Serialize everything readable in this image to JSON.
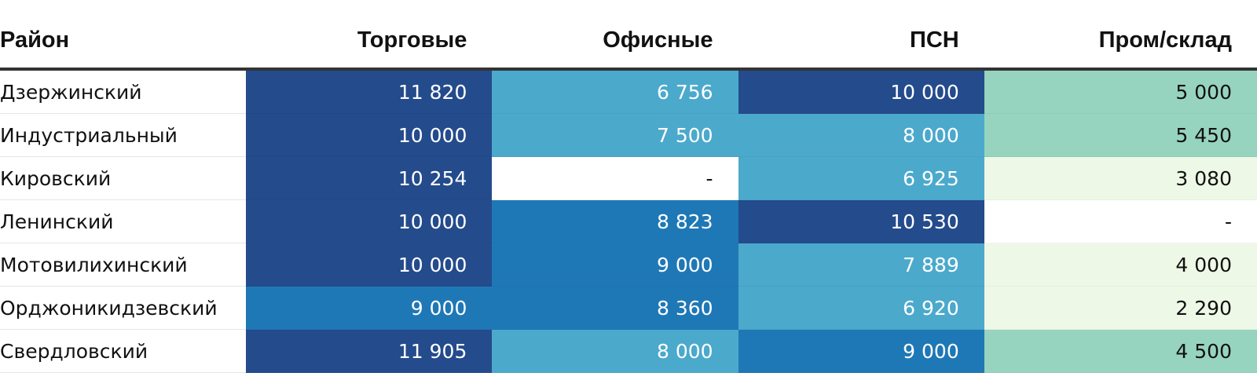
{
  "chart_data": {
    "type": "table",
    "columns": [
      "Район",
      "Торговые",
      "Офисные",
      "ПСН",
      "Пром/склад"
    ],
    "rows": [
      {
        "name": "Дзержинский",
        "values": [
          "11 820",
          "6 756",
          "10 000",
          "5 000"
        ],
        "levels": [
          4,
          2,
          4,
          2
        ]
      },
      {
        "name": "Индустриальный",
        "values": [
          "10 000",
          "7 500",
          "8 000",
          "5 450"
        ],
        "levels": [
          4,
          2,
          2,
          2
        ]
      },
      {
        "name": "Кировский",
        "values": [
          "10 254",
          "-",
          "6 925",
          "3 080"
        ],
        "levels": [
          4,
          0,
          2,
          1
        ]
      },
      {
        "name": "Ленинский",
        "values": [
          "10 000",
          "8 823",
          "10 530",
          "-"
        ],
        "levels": [
          4,
          3,
          4,
          0
        ]
      },
      {
        "name": "Мотовилихинский",
        "values": [
          "10 000",
          "9 000",
          "7 889",
          "4 000"
        ],
        "levels": [
          4,
          3,
          2,
          1
        ]
      },
      {
        "name": "Орджоникидзевский",
        "values": [
          "9 000",
          "8 360",
          "6 920",
          "2 290"
        ],
        "levels": [
          3,
          3,
          2,
          1
        ]
      },
      {
        "name": "Свердловский",
        "values": [
          "11 905",
          "8 000",
          "9 000",
          "4 500"
        ],
        "levels": [
          4,
          2,
          3,
          2
        ]
      }
    ]
  },
  "colors": {
    "dark_blue": "#244b8c",
    "mid_blue": "#1f78b6",
    "light_blue": "#4ba9cc",
    "green_mid": "#97d4bf",
    "green_light": "#eef8e6",
    "empty": "#ffffff",
    "text_light": "#ffffff",
    "text_dark": "#111111"
  }
}
